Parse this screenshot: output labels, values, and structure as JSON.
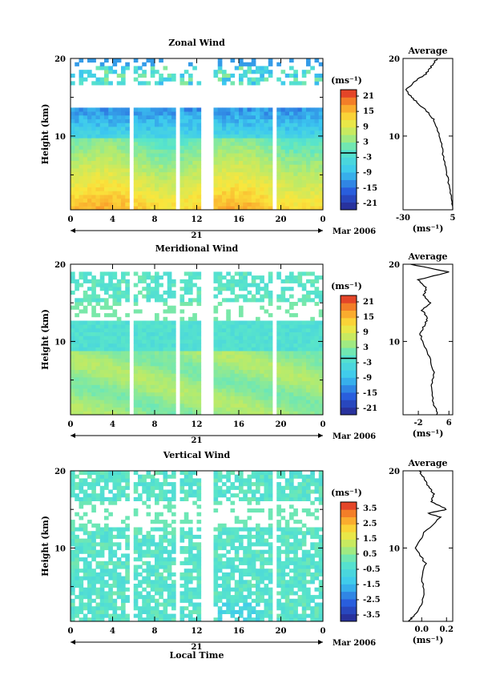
{
  "figure": {
    "xlabel": "Local Time",
    "date_label": "Mar 2006",
    "day_label": "21"
  },
  "chart_data": [
    {
      "type": "heatmap",
      "title": "Zonal Wind",
      "ylabel": "Height (km)",
      "xlabel": "",
      "x_ticks": [
        "0",
        "4",
        "8",
        "12",
        "16",
        "20",
        "0"
      ],
      "x_range": [
        0,
        24
      ],
      "y_ticks": [
        "20",
        "10"
      ],
      "y_range": [
        0.5,
        20
      ],
      "colorbar": {
        "unit": "(ms⁻¹)",
        "range": [
          -24,
          24
        ],
        "ticks": [
          "21",
          "15",
          "9",
          "3",
          "-3",
          "-9",
          "-15",
          "-21"
        ]
      },
      "data_gaps_hours": [
        5.8,
        10.3,
        12.8,
        13.4,
        19.3
      ],
      "profile": {
        "title": "Average",
        "x_ticks": [
          "-30",
          "5"
        ],
        "x_range": [
          -30,
          5
        ],
        "xlabel": "(ms⁻¹)",
        "y_ticks": [
          "20",
          "10"
        ],
        "height_km": [
          0.5,
          2,
          4,
          6,
          8,
          10,
          12,
          13,
          14,
          15,
          16,
          17,
          18,
          19,
          20
        ],
        "value": [
          5,
          4,
          2,
          0,
          -2,
          -4,
          -8,
          -12,
          -18,
          -24,
          -28,
          -22,
          -14,
          -10,
          -6
        ]
      }
    },
    {
      "type": "heatmap",
      "title": "Meridional Wind",
      "ylabel": "Height (km)",
      "xlabel": "",
      "x_ticks": [
        "0",
        "4",
        "8",
        "12",
        "16",
        "20",
        "0"
      ],
      "x_range": [
        0,
        24
      ],
      "y_ticks": [
        "20",
        "10"
      ],
      "y_range": [
        0.5,
        20
      ],
      "colorbar": {
        "unit": "(ms⁻¹)",
        "range": [
          -24,
          24
        ],
        "ticks": [
          "21",
          "15",
          "9",
          "3",
          "-3",
          "-9",
          "-15",
          "-21"
        ]
      },
      "data_gaps_hours": [
        5.8,
        10.3,
        12.8,
        13.4,
        19.3
      ],
      "profile": {
        "title": "Average",
        "x_ticks": [
          "-2",
          "6"
        ],
        "x_range": [
          -6,
          7
        ],
        "xlabel": "(ms⁻¹)",
        "y_ticks": [
          "20",
          "10"
        ],
        "height_km": [
          0.5,
          2,
          4,
          6,
          8,
          10,
          11,
          12,
          13,
          14,
          15,
          16,
          17,
          18,
          19,
          20
        ],
        "value": [
          3,
          2,
          1.5,
          2,
          1,
          -1,
          -1.5,
          -0.5,
          0.5,
          -1,
          1,
          -0.5,
          0,
          -2,
          6,
          -4
        ]
      }
    },
    {
      "type": "heatmap",
      "title": "Vertical Wind",
      "ylabel": "Height (km)",
      "xlabel": "Local Time",
      "x_ticks": [
        "0",
        "4",
        "8",
        "12",
        "16",
        "20",
        "0"
      ],
      "x_range": [
        0,
        24
      ],
      "y_ticks": [
        "20",
        "10"
      ],
      "y_range": [
        0.5,
        20
      ],
      "colorbar": {
        "unit": "(ms⁻¹)",
        "range": [
          -4,
          4
        ],
        "ticks": [
          "3.5",
          "2.5",
          "1.5",
          "0.5",
          "-0.5",
          "-1.5",
          "-2.5",
          "-3.5"
        ]
      },
      "data_gaps_hours": [
        5.8,
        10.3,
        12.8,
        13.4,
        19.3
      ],
      "profile": {
        "title": "Average",
        "x_ticks": [
          "0.0",
          "0.2"
        ],
        "x_range": [
          -0.15,
          0.25
        ],
        "xlabel": "(ms⁻¹)",
        "y_ticks": [
          "20",
          "10"
        ],
        "height_km": [
          0.5,
          1,
          2,
          4,
          6,
          8,
          10,
          12,
          14,
          14.5,
          15,
          16,
          17,
          18,
          19,
          20
        ],
        "value": [
          -0.1,
          -0.08,
          -0.02,
          0.02,
          0.0,
          0.03,
          -0.05,
          0.02,
          0.15,
          0.05,
          0.2,
          0.08,
          0.1,
          0.05,
          0.02,
          -0.02
        ]
      }
    }
  ]
}
